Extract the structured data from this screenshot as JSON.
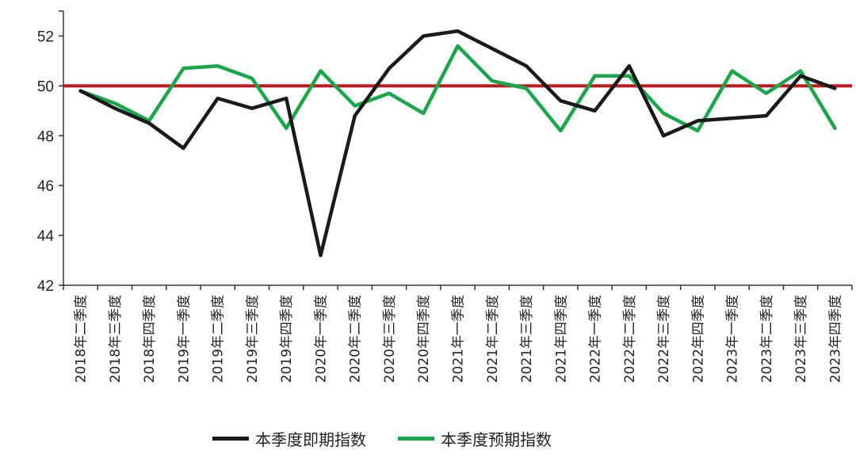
{
  "chart_data": {
    "type": "line",
    "categories": [
      "2018年二季度",
      "2018年三季度",
      "2018年四季度",
      "2019年一季度",
      "2019年二季度",
      "2019年三季度",
      "2019年四季度",
      "2020年一季度",
      "2020年二季度",
      "2020年三季度",
      "2020年四季度",
      "2021年一季度",
      "2021年二季度",
      "2021年三季度",
      "2021年四季度",
      "2022年一季度",
      "2022年二季度",
      "2022年三季度",
      "2022年四季度",
      "2023年一季度",
      "2023年二季度",
      "2023年三季度",
      "2023年四季度"
    ],
    "series": [
      {
        "name": "本季度即期指数",
        "color": "#1a1a1a",
        "values": [
          49.8,
          49.1,
          48.5,
          47.5,
          49.5,
          49.1,
          49.5,
          43.2,
          48.8,
          50.7,
          52.0,
          52.2,
          51.5,
          50.8,
          49.4,
          49.0,
          50.8,
          48.0,
          48.6,
          48.7,
          48.8,
          50.4,
          49.9
        ]
      },
      {
        "name": "本季度预期指数",
        "color": "#1aa64a",
        "values": [
          49.8,
          49.3,
          48.6,
          50.7,
          50.8,
          50.3,
          48.3,
          50.6,
          49.2,
          49.7,
          48.9,
          51.6,
          50.2,
          49.9,
          48.2,
          50.4,
          50.4,
          48.9,
          48.2,
          50.6,
          49.7,
          50.6,
          48.3
        ]
      }
    ],
    "reference_line": {
      "value": 50,
      "color": "#c0161e"
    },
    "ylim": [
      42,
      53
    ],
    "yticks": [
      42,
      44,
      46,
      48,
      50,
      52
    ],
    "grid": false,
    "legend_position": "bottom"
  }
}
